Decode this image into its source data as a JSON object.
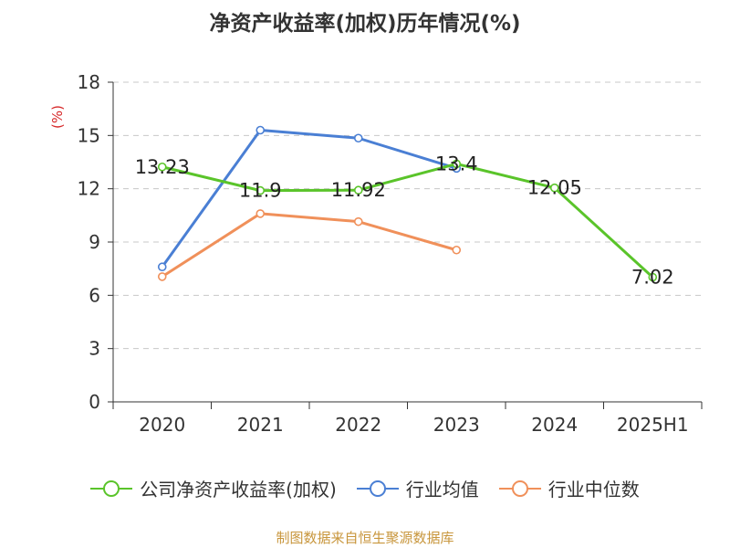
{
  "title": "净资产收益率(加权)历年情况(%)",
  "source": "制图数据来自恒生聚源数据库",
  "chart_data": {
    "type": "line",
    "title": "净资产收益率(加权)历年情况(%)",
    "ylabel": "(%)",
    "xlabel": "",
    "categories": [
      "2020",
      "2021",
      "2022",
      "2023",
      "2024",
      "2025H1"
    ],
    "ylim": [
      0,
      18
    ],
    "yticks": [
      0,
      3,
      6,
      9,
      12,
      15,
      18
    ],
    "grid": true,
    "legend_position": "bottom",
    "series": [
      {
        "name": "公司净资产收益率(加权)",
        "color": "#5ac42a",
        "values": [
          13.23,
          11.9,
          11.92,
          13.4,
          12.05,
          7.02
        ],
        "labels": true
      },
      {
        "name": "行业均值",
        "color": "#4a7fd4",
        "values": [
          7.6,
          15.3,
          14.85,
          13.15,
          null,
          null
        ],
        "labels": false
      },
      {
        "name": "行业中位数",
        "color": "#f0905a",
        "values": [
          7.05,
          10.6,
          10.15,
          8.55,
          null,
          null
        ],
        "labels": false
      }
    ],
    "data_labels": [
      "13.23",
      "11.9",
      "11.92",
      "13.4",
      "12.05",
      "7.02"
    ]
  }
}
